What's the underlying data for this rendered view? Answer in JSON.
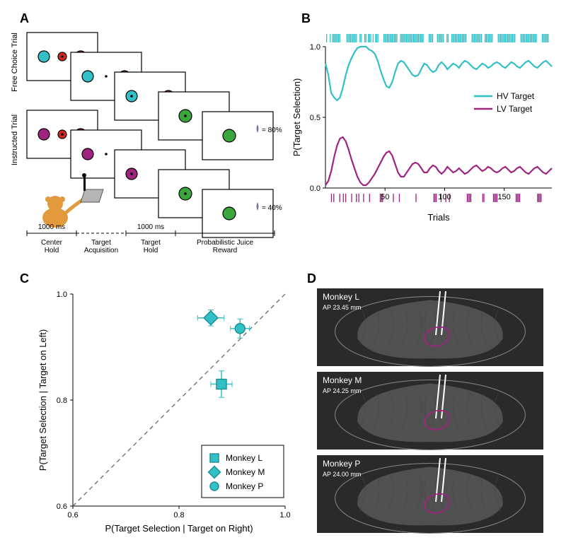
{
  "panels": {
    "A": "A",
    "B": "B",
    "C": "C",
    "D": "D"
  },
  "colors": {
    "hv": "#32c0c6",
    "lv": "#a0247f",
    "monkey": "#e39a3d",
    "red_target": "#d4281e",
    "green_target": "#3aa63c",
    "juice": "#7d6fa8",
    "brain_bg": "#2a2a2a",
    "brain_light": "#6f6f6f",
    "diag": "#666666"
  },
  "panelA": {
    "top_label": "Free Choice Trial",
    "bottom_label": "Instructed Trial",
    "timeline": [
      "Center\nHold",
      "Target\nAcquisition",
      "Target\nHold",
      "Probabilistic Juice\nReward"
    ],
    "times": [
      "1000 ms",
      "1000 ms"
    ],
    "reward_labels": [
      "= 80%",
      "= 40%"
    ]
  },
  "panelB": {
    "ylabel": "P(Target Selection)",
    "xlabel": "Trials",
    "legend": {
      "hv": "HV Target",
      "lv": "LV Target"
    },
    "xticks": [
      50,
      100,
      150
    ],
    "yticks": [
      0.0,
      0.5,
      1.0
    ],
    "hv_y": [
      0.88,
      0.8,
      0.67,
      0.64,
      0.62,
      0.64,
      0.71,
      0.8,
      0.87,
      0.92,
      0.96,
      0.99,
      1.0,
      1.0,
      1.0,
      0.98,
      0.97,
      0.95,
      0.9,
      0.83,
      0.77,
      0.72,
      0.71,
      0.75,
      0.82,
      0.88,
      0.9,
      0.89,
      0.86,
      0.83,
      0.8,
      0.79,
      0.8,
      0.84,
      0.88,
      0.87,
      0.84,
      0.82,
      0.83,
      0.87,
      0.89,
      0.87,
      0.84,
      0.86,
      0.88,
      0.87,
      0.85,
      0.88,
      0.9,
      0.89,
      0.87,
      0.85,
      0.84,
      0.86,
      0.88,
      0.87,
      0.85,
      0.86,
      0.88,
      0.89,
      0.88,
      0.86,
      0.85,
      0.87,
      0.89,
      0.88,
      0.86,
      0.85,
      0.87,
      0.89,
      0.9,
      0.88,
      0.86,
      0.85,
      0.87,
      0.89,
      0.9,
      0.88,
      0.86
    ],
    "lv_y": [
      0.02,
      0.05,
      0.12,
      0.22,
      0.3,
      0.35,
      0.36,
      0.33,
      0.27,
      0.2,
      0.14,
      0.08,
      0.04,
      0.02,
      0.02,
      0.04,
      0.07,
      0.1,
      0.14,
      0.18,
      0.22,
      0.25,
      0.26,
      0.23,
      0.17,
      0.11,
      0.08,
      0.08,
      0.11,
      0.14,
      0.17,
      0.18,
      0.17,
      0.14,
      0.11,
      0.11,
      0.14,
      0.16,
      0.15,
      0.12,
      0.1,
      0.12,
      0.15,
      0.13,
      0.11,
      0.12,
      0.14,
      0.12,
      0.1,
      0.11,
      0.13,
      0.15,
      0.16,
      0.14,
      0.12,
      0.13,
      0.15,
      0.14,
      0.12,
      0.11,
      0.12,
      0.14,
      0.15,
      0.13,
      0.11,
      0.12,
      0.14,
      0.15,
      0.13,
      0.11,
      0.1,
      0.12,
      0.14,
      0.15,
      0.13,
      0.11,
      0.1,
      0.12,
      0.14
    ],
    "hv_raster": [
      1,
      4,
      6,
      7,
      8,
      9,
      10,
      11,
      12,
      18,
      19,
      20,
      21,
      22,
      23,
      24,
      25,
      26,
      29,
      30,
      33,
      34,
      36,
      37,
      38,
      40,
      42,
      43,
      44,
      49,
      50,
      51,
      52,
      53,
      54,
      55,
      56,
      57,
      58,
      59,
      60,
      63,
      64,
      65,
      66,
      67,
      68,
      69,
      70,
      71,
      72,
      73,
      74,
      75,
      76,
      77,
      78,
      79,
      80,
      81,
      82,
      87,
      88,
      89,
      90,
      94,
      95,
      96,
      97,
      98,
      99,
      102,
      103,
      106,
      107,
      108,
      109,
      110,
      111,
      112,
      113,
      114,
      115,
      116,
      117,
      118,
      123,
      124,
      125,
      126,
      127,
      128,
      129,
      130,
      131,
      134,
      135,
      136,
      137,
      138,
      139,
      140,
      145,
      146,
      147,
      148,
      149,
      150,
      151,
      152,
      153,
      154,
      155,
      156,
      157,
      158,
      159,
      164,
      165,
      166,
      167,
      168,
      169,
      170,
      171,
      172,
      173,
      174,
      175,
      176,
      177,
      182,
      183,
      184,
      185,
      186,
      187
    ],
    "lv_raster": [
      5,
      7,
      12,
      15,
      17,
      22,
      26,
      28,
      32,
      37,
      46,
      47,
      48,
      57,
      62,
      76,
      91,
      92,
      93,
      97,
      101,
      104,
      119,
      120,
      121,
      122,
      132,
      133,
      141,
      142,
      143,
      144,
      160,
      161,
      162,
      163,
      178,
      179,
      180,
      181
    ],
    "xmax": 190
  },
  "panelC": {
    "xlabel": "P(Target Selection | Target on Right)",
    "ylabel": "P(Target Selection | Target on Left)",
    "lim": [
      0.6,
      1.0
    ],
    "ticks": [
      0.6,
      0.8,
      1.0
    ],
    "legend": [
      "Monkey L",
      "Monkey M",
      "Monkey P"
    ],
    "points": {
      "L": {
        "x": 0.88,
        "y": 0.83,
        "ex": 0.02,
        "ey": 0.025,
        "shape": "square"
      },
      "M": {
        "x": 0.86,
        "y": 0.955,
        "ex": 0.025,
        "ey": 0.015,
        "shape": "diamond"
      },
      "P": {
        "x": 0.915,
        "y": 0.935,
        "ex": 0.018,
        "ey": 0.018,
        "shape": "circle"
      }
    }
  },
  "panelD": {
    "labels": [
      "Monkey L",
      "Monkey M",
      "Monkey P"
    ],
    "ap": [
      "AP 23.45 mm",
      "AP 24.25 mm",
      "AP 24.00 mm"
    ]
  }
}
